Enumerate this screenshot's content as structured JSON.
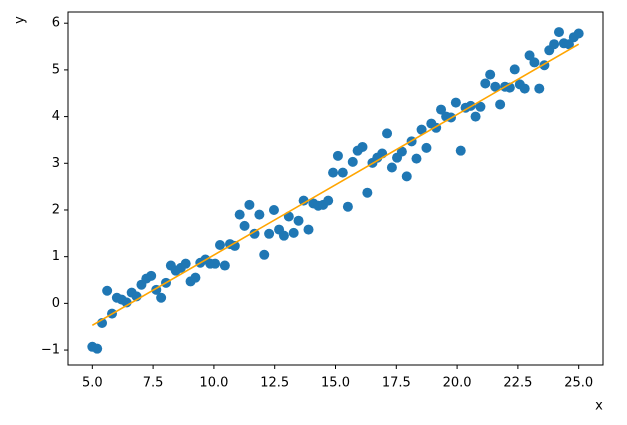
{
  "chart_data": {
    "type": "scatter",
    "x_label": "x",
    "y_label": "y",
    "xlim": [
      4,
      26
    ],
    "ylim": [
      -1.32,
      6.24
    ],
    "xticks": [
      {
        "value": 5,
        "label": "5.0"
      },
      {
        "value": 7.5,
        "label": "7.5"
      },
      {
        "value": 10,
        "label": "10.0"
      },
      {
        "value": 12.5,
        "label": "12.5"
      },
      {
        "value": 15,
        "label": "15.0"
      },
      {
        "value": 17.5,
        "label": "17.5"
      },
      {
        "value": 20,
        "label": "20.0"
      },
      {
        "value": 22.5,
        "label": "22.5"
      },
      {
        "value": 25,
        "label": "25.0"
      }
    ],
    "yticks": [
      {
        "value": -1,
        "label": "−1"
      },
      0,
      1,
      2,
      3,
      4,
      5,
      6
    ],
    "grid": false,
    "series": [
      {
        "type": "scatter",
        "color": "#1f77b4",
        "x": [
          5.0,
          5.2,
          5.4,
          5.61,
          5.81,
          6.01,
          6.21,
          6.41,
          6.62,
          6.82,
          7.02,
          7.22,
          7.42,
          7.63,
          7.83,
          8.03,
          8.23,
          8.43,
          8.64,
          8.84,
          9.04,
          9.24,
          9.44,
          9.65,
          9.85,
          10.05,
          10.25,
          10.45,
          10.66,
          10.86,
          11.06,
          11.26,
          11.46,
          11.67,
          11.87,
          12.07,
          12.27,
          12.47,
          12.68,
          12.88,
          13.08,
          13.28,
          13.48,
          13.69,
          13.89,
          14.09,
          14.29,
          14.49,
          14.7,
          14.9,
          15.1,
          15.3,
          15.51,
          15.71,
          15.91,
          16.11,
          16.31,
          16.52,
          16.72,
          16.92,
          17.12,
          17.32,
          17.53,
          17.73,
          17.93,
          18.13,
          18.33,
          18.54,
          18.74,
          18.94,
          19.14,
          19.34,
          19.55,
          19.75,
          19.95,
          20.15,
          20.35,
          20.56,
          20.76,
          20.96,
          21.16,
          21.36,
          21.57,
          21.77,
          21.97,
          22.17,
          22.37,
          22.58,
          22.78,
          22.98,
          23.18,
          23.38,
          23.59,
          23.79,
          23.99,
          24.19,
          24.39,
          24.6,
          24.8,
          25.0
        ],
        "values": [
          -0.93,
          -0.97,
          -0.42,
          0.27,
          -0.22,
          0.12,
          0.08,
          0.02,
          0.23,
          0.15,
          0.4,
          0.53,
          0.59,
          0.29,
          0.12,
          0.44,
          0.81,
          0.7,
          0.76,
          0.85,
          0.47,
          0.55,
          0.87,
          0.94,
          0.85,
          0.85,
          1.25,
          0.81,
          1.27,
          1.23,
          1.9,
          1.66,
          2.11,
          1.49,
          1.9,
          1.04,
          1.49,
          2.0,
          1.58,
          1.45,
          1.86,
          1.51,
          1.77,
          2.2,
          1.58,
          2.14,
          2.09,
          2.11,
          2.2,
          2.8,
          3.16,
          2.8,
          2.07,
          3.03,
          3.27,
          3.35,
          2.37,
          3.01,
          3.12,
          3.21,
          3.64,
          2.91,
          3.12,
          3.25,
          2.72,
          3.47,
          3.1,
          3.72,
          3.33,
          3.85,
          3.76,
          4.15,
          4.0,
          3.98,
          4.3,
          3.27,
          4.19,
          4.23,
          4.0,
          4.21,
          4.71,
          4.9,
          4.64,
          4.26,
          4.64,
          4.62,
          5.01,
          4.69,
          4.6,
          5.31,
          5.16,
          4.6,
          5.1,
          5.42,
          5.55,
          5.81,
          5.57,
          5.55,
          5.7,
          5.78
        ]
      },
      {
        "type": "line",
        "color": "orange",
        "x": [
          5,
          25
        ],
        "values": [
          -0.47,
          5.55
        ]
      }
    ]
  }
}
